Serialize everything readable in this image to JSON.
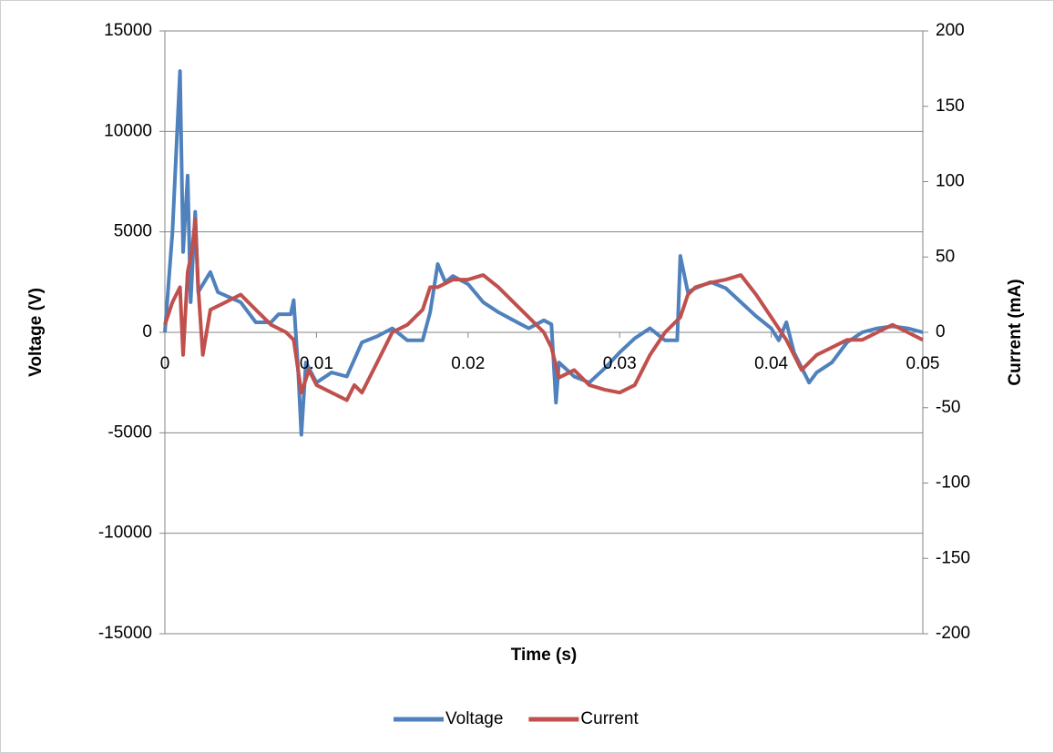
{
  "chart_data": {
    "type": "line",
    "xlabel": "Time (s)",
    "ylabel": "Voltage (V)",
    "y2label": "Current (mA)",
    "xlim": [
      0,
      0.05
    ],
    "xticks": [
      0,
      0.01,
      0.02,
      0.03,
      0.04,
      0.05
    ],
    "ylim": [
      -15000,
      15000
    ],
    "yticks": [
      -15000,
      -10000,
      -5000,
      0,
      5000,
      10000,
      15000
    ],
    "y2lim": [
      -200,
      200
    ],
    "y2ticks": [
      -200,
      -150,
      -100,
      -50,
      0,
      50,
      100,
      150,
      200
    ],
    "grid": true,
    "legend": "bottom",
    "series": [
      {
        "name": "Voltage",
        "color": "#4f81bd",
        "x": [
          0,
          0.0005,
          0.001,
          0.0012,
          0.0015,
          0.0017,
          0.002,
          0.0022,
          0.003,
          0.0035,
          0.005,
          0.006,
          0.007,
          0.0075,
          0.0083,
          0.0085,
          0.0088,
          0.009,
          0.0093,
          0.01,
          0.011,
          0.012,
          0.013,
          0.014,
          0.015,
          0.016,
          0.017,
          0.0175,
          0.018,
          0.0185,
          0.019,
          0.02,
          0.021,
          0.022,
          0.023,
          0.024,
          0.025,
          0.0255,
          0.0258,
          0.026,
          0.027,
          0.028,
          0.029,
          0.03,
          0.031,
          0.032,
          0.033,
          0.0338,
          0.034,
          0.0345,
          0.035,
          0.036,
          0.037,
          0.038,
          0.039,
          0.04,
          0.0405,
          0.041,
          0.0415,
          0.0425,
          0.043,
          0.044,
          0.045,
          0.046,
          0.047,
          0.048,
          0.049,
          0.05
        ],
        "values": [
          0,
          5000,
          13000,
          4000,
          7800,
          1500,
          6000,
          2000,
          3000,
          2000,
          1500,
          500,
          500,
          900,
          900,
          1600,
          -2000,
          -5100,
          -1500,
          -2500,
          -2000,
          -2200,
          -500,
          -200,
          200,
          -400,
          -400,
          1000,
          3400,
          2500,
          2800,
          2400,
          1500,
          1000,
          600,
          200,
          600,
          400,
          -3500,
          -1500,
          -2200,
          -2500,
          -1800,
          -1000,
          -300,
          200,
          -400,
          -400,
          3800,
          2000,
          2200,
          2500,
          2200,
          1500,
          800,
          200,
          -400,
          500,
          -1000,
          -2500,
          -2000,
          -1500,
          -500,
          0,
          200,
          300,
          200,
          0
        ]
      },
      {
        "name": "Current",
        "color": "#c0504d",
        "axis": "y2",
        "x": [
          0,
          0.0005,
          0.001,
          0.0012,
          0.0015,
          0.0018,
          0.002,
          0.0022,
          0.0025,
          0.003,
          0.004,
          0.005,
          0.006,
          0.007,
          0.008,
          0.0085,
          0.009,
          0.0095,
          0.01,
          0.011,
          0.012,
          0.0125,
          0.013,
          0.014,
          0.015,
          0.016,
          0.017,
          0.0175,
          0.018,
          0.019,
          0.02,
          0.021,
          0.022,
          0.023,
          0.024,
          0.025,
          0.0255,
          0.026,
          0.027,
          0.028,
          0.029,
          0.03,
          0.031,
          0.032,
          0.033,
          0.034,
          0.0345,
          0.035,
          0.036,
          0.037,
          0.038,
          0.039,
          0.04,
          0.041,
          0.042,
          0.043,
          0.044,
          0.045,
          0.046,
          0.047,
          0.048,
          0.049,
          0.05
        ],
        "values": [
          5,
          20,
          30,
          -15,
          40,
          55,
          75,
          30,
          -15,
          15,
          20,
          25,
          15,
          5,
          0,
          -5,
          -40,
          -25,
          -35,
          -40,
          -45,
          -35,
          -40,
          -20,
          0,
          5,
          15,
          30,
          30,
          35,
          35,
          38,
          30,
          20,
          10,
          0,
          -10,
          -30,
          -25,
          -35,
          -38,
          -40,
          -35,
          -15,
          0,
          10,
          25,
          30,
          33,
          35,
          38,
          25,
          10,
          -5,
          -25,
          -15,
          -10,
          -5,
          -5,
          0,
          5,
          0,
          -5
        ]
      }
    ]
  }
}
